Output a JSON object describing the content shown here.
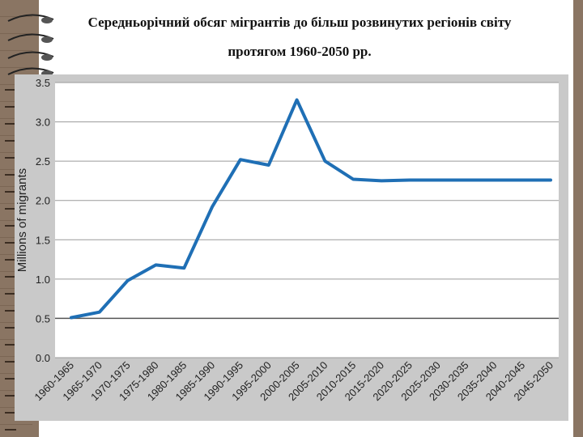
{
  "title": {
    "line1": "Середньорічний обсяг мігрантів до більш розвинутих регіонів світу",
    "line2": "протягом 1960-2050 рр."
  },
  "chart_data": {
    "type": "line",
    "title": "Середньорічний обсяг мігрантів до більш розвинутих регіонів світу протягом 1960-2050 рр.",
    "xlabel": "",
    "ylabel": "Millions of migrants",
    "ylim": [
      0,
      3.5
    ],
    "yticks": [
      "0.0",
      "0.5",
      "1.0",
      "1.5",
      "2.0",
      "2.5",
      "3.0",
      "3.5"
    ],
    "grid": true,
    "categories": [
      "1960-1965",
      "1965-1970",
      "1970-1975",
      "1975-1980",
      "1980-1985",
      "1985-1990",
      "1990-1995",
      "1995-2000",
      "2000-2005",
      "2005-2010",
      "2010-2015",
      "2015-2020",
      "2020-2025",
      "2025-2030",
      "2030-2035",
      "2035-2040",
      "2040-2045",
      "2045-2050"
    ],
    "series": [
      {
        "values": [
          0.51,
          0.58,
          0.98,
          1.18,
          1.14,
          1.92,
          2.52,
          2.45,
          3.28,
          2.5,
          2.27,
          2.25,
          2.26,
          2.26,
          2.26,
          2.26,
          2.26,
          2.26
        ],
        "color": "#1f6fb5"
      }
    ]
  }
}
